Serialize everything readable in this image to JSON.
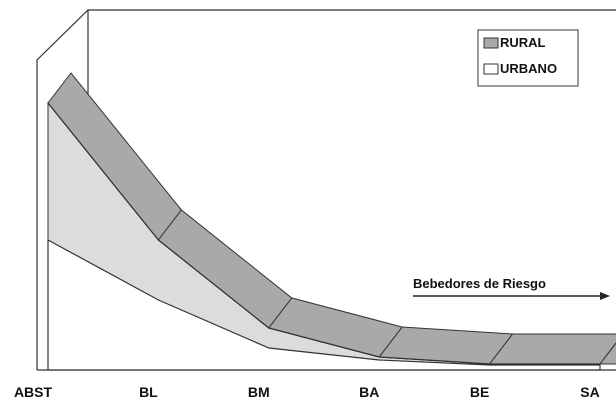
{
  "chart_data": {
    "type": "area3d",
    "categories": [
      "ABST",
      "BL",
      "BM",
      "BA",
      "BE",
      "SA"
    ],
    "series": [
      {
        "name": "RURAL",
        "color": "#a9a9a9",
        "values": [
          267,
          130,
          42,
          13,
          6,
          6
        ]
      },
      {
        "name": "URBANO",
        "color": "#ffffff",
        "values": [
          130,
          70,
          22,
          10,
          5,
          5
        ]
      }
    ],
    "ylim": [
      0,
      300
    ],
    "annotation": "Bebedores de Riesgo"
  }
}
